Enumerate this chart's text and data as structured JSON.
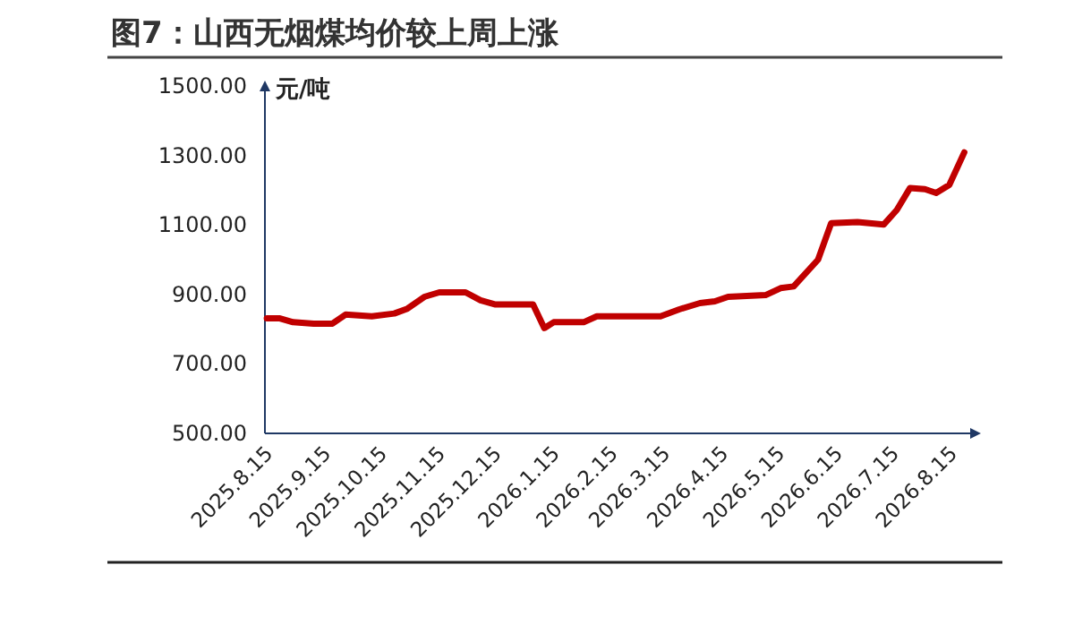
{
  "chart_data": {
    "type": "line",
    "title": "图7：山西无烟煤均价较上周上涨",
    "ylabel": "元/吨",
    "x": [
      "2025-08-15",
      "2025-08-22",
      "2025-08-29",
      "2025-09-09",
      "2025-09-19",
      "2025-09-26",
      "2025-10-10",
      "2025-10-22",
      "2025-10-29",
      "2025-11-07",
      "2025-11-15",
      "2025-11-29",
      "2025-12-07",
      "2025-12-15",
      "2026-01-04",
      "2026-01-10",
      "2026-01-15",
      "2026-01-31",
      "2026-02-07",
      "2026-03-13",
      "2026-03-23",
      "2026-04-03",
      "2026-04-11",
      "2026-04-18",
      "2026-05-08",
      "2026-05-16",
      "2026-05-23",
      "2026-06-05",
      "2026-06-12",
      "2026-06-26",
      "2026-07-10",
      "2026-07-17",
      "2026-07-24",
      "2026-08-01",
      "2026-08-07",
      "2026-08-14",
      "2026-08-22"
    ],
    "series": [
      {
        "color": "#c00000",
        "values": [
          831,
          831,
          820,
          816,
          816,
          842,
          837,
          845,
          859,
          893,
          906,
          906,
          883,
          871,
          871,
          803,
          820,
          820,
          837,
          837,
          857,
          875,
          880,
          893,
          898,
          918,
          923,
          1000,
          1105,
          1108,
          1101,
          1143,
          1206,
          1203,
          1192,
          1215,
          1309
        ]
      }
    ],
    "xlim": [
      "2025-08-14",
      "2026-08-28"
    ],
    "xticks": [
      {
        "value": "2025-08-15",
        "label": "2025.8.15"
      },
      {
        "value": "2025-09-15",
        "label": "2025.9.15"
      },
      {
        "value": "2025-10-15",
        "label": "2025.10.15"
      },
      {
        "value": "2025-11-15",
        "label": "2025.11.15"
      },
      {
        "value": "2025-12-15",
        "label": "2025.12.15"
      },
      {
        "value": "2026-01-15",
        "label": "2026.1.15"
      },
      {
        "value": "2026-02-15",
        "label": "2026.2.15"
      },
      {
        "value": "2026-03-15",
        "label": "2026.3.15"
      },
      {
        "value": "2026-04-15",
        "label": "2026.4.15"
      },
      {
        "value": "2026-05-15",
        "label": "2026.5.15"
      },
      {
        "value": "2026-06-15",
        "label": "2026.6.15"
      },
      {
        "value": "2026-07-15",
        "label": "2026.7.15"
      },
      {
        "value": "2026-08-15",
        "label": "2026.8.15"
      }
    ],
    "ylim": [
      500,
      1500
    ],
    "yticks": [
      {
        "value": 500,
        "label": "500.00"
      },
      {
        "value": 700,
        "label": "700.00"
      },
      {
        "value": 900,
        "label": "900.00"
      },
      {
        "value": 1100,
        "label": "1100.00"
      },
      {
        "value": 1300,
        "label": "1300.00"
      },
      {
        "value": 1500,
        "label": "1500.00"
      }
    ],
    "grid": false,
    "marker": "none",
    "line_style": "solid"
  }
}
